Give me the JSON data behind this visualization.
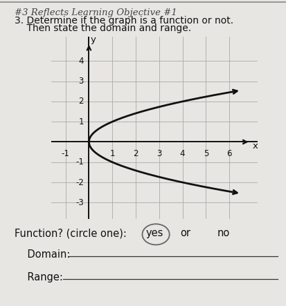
{
  "title_line1": "#3 Reflects Learning Objective #1",
  "title_line2": "3. Determine if the graph is a function or not.",
  "title_line3": "    Then state the domain and range.",
  "bg_color": "#e8e8e8",
  "paper_color": "#e8e6e2",
  "grid_color": "#aaaaaa",
  "axis_color": "#111111",
  "curve_color": "#111111",
  "text_color": "#111111",
  "xlim": [
    -1.6,
    7.2
  ],
  "ylim": [
    -3.8,
    5.2
  ],
  "xticks": [
    -1,
    1,
    2,
    3,
    4,
    5,
    6
  ],
  "yticks": [
    -3,
    -2,
    -1,
    1,
    2,
    3,
    4
  ],
  "xlabel": "x",
  "ylabel": "y"
}
